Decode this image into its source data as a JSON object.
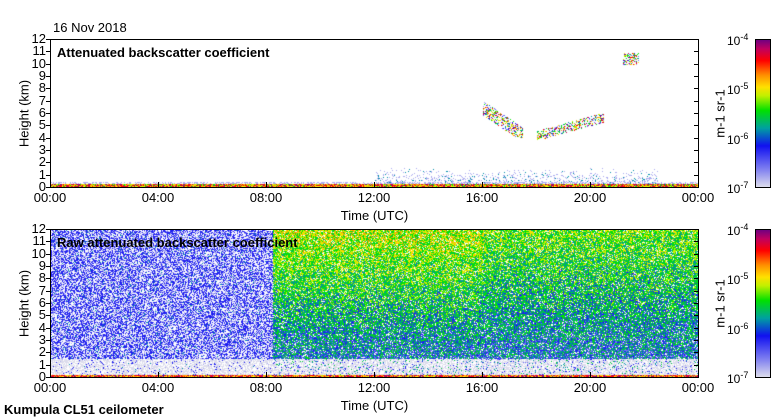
{
  "date": "16 Nov 2018",
  "footer": "Kumpula CL51 ceilometer",
  "chart_data": [
    {
      "type": "heatmap",
      "title": "Attenuated backscatter coefficient",
      "xlabel": "Time (UTC)",
      "ylabel": "Height (km)",
      "xticks": [
        "00:00",
        "04:00",
        "08:00",
        "12:00",
        "16:00",
        "20:00",
        "00:00"
      ],
      "yticks": [
        "0",
        "1",
        "2",
        "3",
        "4",
        "5",
        "6",
        "7",
        "8",
        "9",
        "10",
        "11",
        "12"
      ],
      "xlim_hours": [
        0,
        24
      ],
      "ylim_km": [
        0,
        12
      ],
      "colorbar": {
        "label": "m-1 sr-1",
        "ticks": [
          "-7",
          "-6",
          "-5",
          "-4"
        ],
        "scale": "log",
        "range": [
          1e-07,
          0.0001
        ]
      },
      "features": [
        {
          "desc": "surface layer",
          "time_hours": [
            0,
            24
          ],
          "height_km": [
            0,
            0.3
          ]
        },
        {
          "desc": "boundary layer aerosol",
          "time_hours": [
            12,
            22.5
          ],
          "height_km": [
            0.3,
            1.8
          ]
        },
        {
          "desc": "mid-level cloud",
          "time_hours": [
            16,
            17.5
          ],
          "height_km": [
            4,
            7
          ]
        },
        {
          "desc": "mid-level cloud",
          "time_hours": [
            18,
            20.5
          ],
          "height_km": [
            3.5,
            6
          ]
        },
        {
          "desc": "high cloud",
          "time_hours": [
            21.2,
            21.8
          ],
          "height_km": [
            10,
            11
          ]
        }
      ]
    },
    {
      "type": "heatmap",
      "title": "Raw attenuated backscatter coefficient",
      "xlabel": "Time (UTC)",
      "ylabel": "Height (km)",
      "xticks": [
        "00:00",
        "04:00",
        "08:00",
        "12:00",
        "16:00",
        "20:00",
        "00:00"
      ],
      "yticks": [
        "0",
        "1",
        "2",
        "3",
        "4",
        "5",
        "6",
        "7",
        "8",
        "9",
        "10",
        "11",
        "12"
      ],
      "xlim_hours": [
        0,
        24
      ],
      "ylim_km": [
        0,
        12
      ],
      "colorbar": {
        "label": "m-1 sr-1",
        "ticks": [
          "-7",
          "-6",
          "-5",
          "-4"
        ],
        "scale": "log",
        "range": [
          1e-07,
          0.0001
        ]
      }
    }
  ]
}
